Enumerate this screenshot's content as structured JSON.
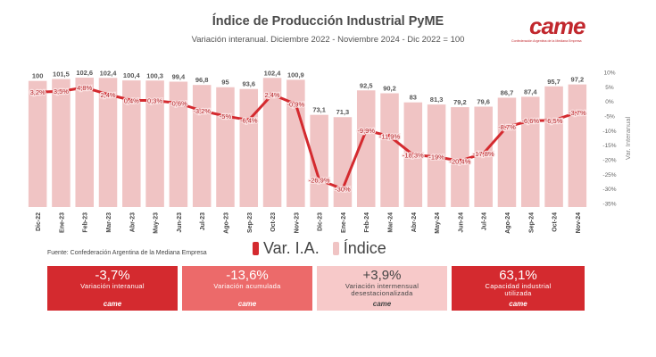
{
  "title": "Índice de Producción Industrial PyME",
  "subtitle": "Variación interanual. Diciembre 2022 - Noviembre 2024 - Dic 2022 = 100",
  "logo": {
    "name": "came-logo",
    "text": "came",
    "subtext": "Confederación Argentina de la Mediana Empresa"
  },
  "source": "Fuente: Confederación Argentina de la Mediana Empresa",
  "legend": [
    {
      "label": "Var. I.A.",
      "color": "#d42a2f"
    },
    {
      "label": "Índice",
      "color": "#f0c4c4"
    }
  ],
  "chart_data": {
    "type": "bar+line",
    "categories": [
      "Dic-22",
      "Ene-23",
      "Feb-23",
      "Mar-23",
      "Abr-23",
      "May-23",
      "Jun-23",
      "Jul-23",
      "Ago-23",
      "Sep-23",
      "Oct-23",
      "Nov-23",
      "Dic-23",
      "Ene-24",
      "Feb-24",
      "Mar-24",
      "Abr-24",
      "May-24",
      "Jun-24",
      "Jul-24",
      "Ago-24",
      "Sep-24",
      "Oct-24",
      "Nov-24"
    ],
    "series": [
      {
        "name": "Índice",
        "type": "bar",
        "values": [
          100,
          101.5,
          102.6,
          102.4,
          100.4,
          100.3,
          99.4,
          96.8,
          95,
          93.6,
          102.4,
          100.9,
          73.1,
          71.3,
          92.5,
          90.2,
          83,
          81.3,
          79.2,
          79.6,
          86.7,
          87.4,
          95.7,
          97.2
        ],
        "labels": [
          "100",
          "101,5",
          "102,6",
          "102,4",
          "100,4",
          "100,3",
          "99,4",
          "96,8",
          "95",
          "93,6",
          "102,4",
          "100,9",
          "73,1",
          "71,3",
          "92,5",
          "90,2",
          "83",
          "81,3",
          "79,2",
          "79,6",
          "86,7",
          "87,4",
          "95,7",
          "97,2"
        ]
      },
      {
        "name": "Var. I.A.",
        "type": "line",
        "values": [
          3.2,
          3.5,
          4.8,
          2.4,
          0.4,
          0.3,
          -0.6,
          -3.2,
          -5,
          -6.4,
          2.4,
          -0.9,
          -26.9,
          -30,
          -9.9,
          -11.9,
          -18.3,
          -19,
          -20.4,
          -17.8,
          -8.7,
          -6.6,
          -6.5,
          -3.7
        ],
        "labels": [
          "3,2%",
          "3,5%",
          "4,8%",
          "2,4%",
          "0,4%",
          "0,3%",
          "-0,6%",
          "-3,2%",
          "-5%",
          "-6,4%",
          "2,4%",
          "-0,9%",
          "-26,9%",
          "-30%",
          "-9,9%",
          "-11,9%",
          "-18,3%",
          "-19%",
          "-20,4%",
          "-17,8%",
          "-8,7%",
          "-6,6%",
          "-6,5%",
          "-3,7%"
        ]
      }
    ],
    "y2": {
      "label": "Var. Interanual",
      "ticks": [
        "10%",
        "5%",
        "0%",
        "-5%",
        "-10%",
        "-15%",
        "-20%",
        "-25%",
        "-30%",
        "-35%"
      ],
      "range": [
        -35,
        10
      ]
    }
  },
  "cards": [
    {
      "value": "-3,7%",
      "label": "Variación interanual",
      "bg": "#d42a2f",
      "fg": "#ffffff",
      "logo": "came"
    },
    {
      "value": "-13,6%",
      "label": "Variación acumulada",
      "bg": "#ec6a6a",
      "fg": "#ffffff",
      "logo": "came"
    },
    {
      "value": "+3,9%",
      "label": "Variación intermensual desestacionalizada",
      "bg": "#f7c9c9",
      "fg": "#444444",
      "logo": "came"
    },
    {
      "value": "63,1%",
      "label": "Capacidad industrial utilizada",
      "bg": "#d42a2f",
      "fg": "#ffffff",
      "logo": "came"
    }
  ]
}
